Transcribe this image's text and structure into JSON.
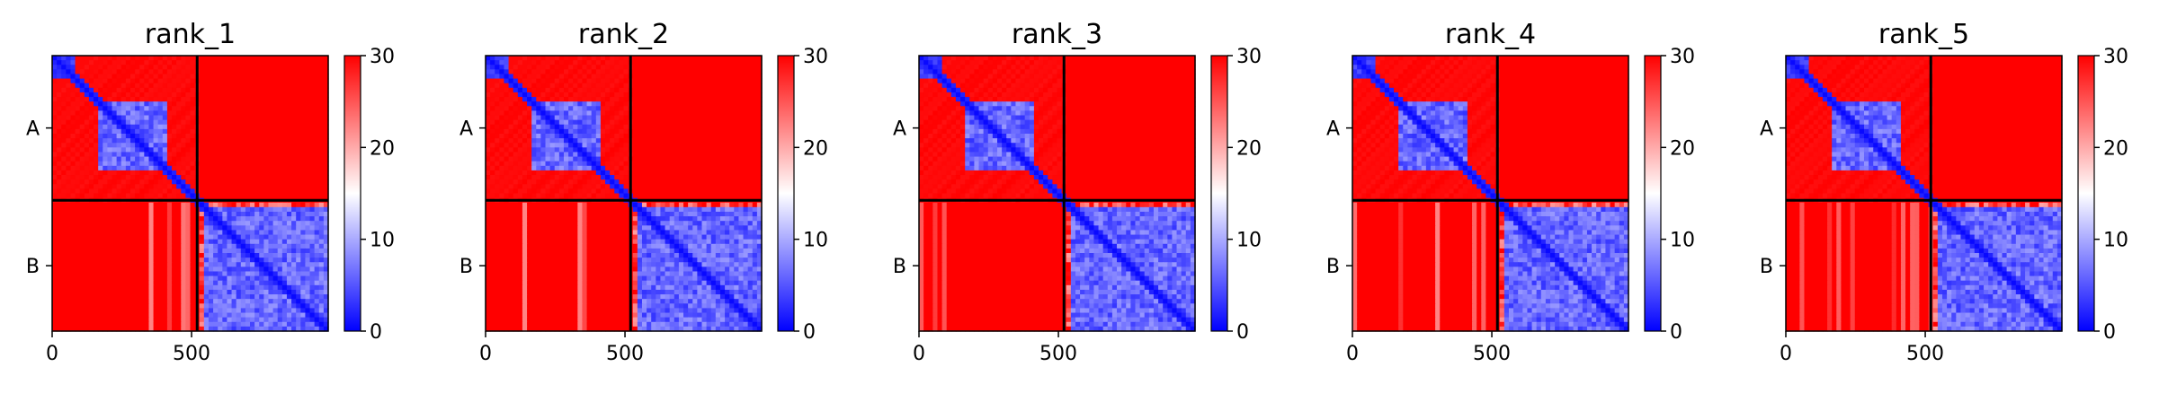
{
  "chart_data": [
    {
      "type": "heatmap",
      "title": "rank_1",
      "xlabel": "",
      "ylabel": "",
      "x_ticks": [
        0,
        500
      ],
      "xlim": [
        0,
        990
      ],
      "y_tick_labels": [
        "A",
        "B"
      ],
      "chain_boundary": 520,
      "colorbar": {
        "colormap": "bwr",
        "min": 0,
        "max": 30,
        "ticks": [
          0,
          10,
          20,
          30
        ]
      },
      "variant": 1,
      "blocks": [
        {
          "chains": "A-A",
          "region": [
            0,
            80
          ],
          "value": 2
        },
        {
          "chains": "A-A",
          "region": [
            160,
            410
          ],
          "value": 5
        },
        {
          "chains": "B-B",
          "region": [
            540,
            990
          ],
          "value": 5
        },
        {
          "chains": "A-B",
          "value": 30
        },
        {
          "chains": "B-A",
          "value": 30
        }
      ]
    },
    {
      "type": "heatmap",
      "title": "rank_2",
      "xlabel": "",
      "ylabel": "",
      "x_ticks": [
        0,
        500
      ],
      "xlim": [
        0,
        990
      ],
      "y_tick_labels": [
        "A",
        "B"
      ],
      "chain_boundary": 520,
      "colorbar": {
        "colormap": "bwr",
        "min": 0,
        "max": 30,
        "ticks": [
          0,
          10,
          20,
          30
        ]
      },
      "variant": 2,
      "blocks": [
        {
          "chains": "A-A",
          "region": [
            0,
            80
          ],
          "value": 2
        },
        {
          "chains": "A-A",
          "region": [
            160,
            410
          ],
          "value": 6
        },
        {
          "chains": "B-B",
          "region": [
            540,
            990
          ],
          "value": 5
        },
        {
          "chains": "A-B",
          "value": 30
        },
        {
          "chains": "B-A",
          "value": 30
        }
      ]
    },
    {
      "type": "heatmap",
      "title": "rank_3",
      "xlabel": "",
      "ylabel": "",
      "x_ticks": [
        0,
        500
      ],
      "xlim": [
        0,
        990
      ],
      "y_tick_labels": [
        "A",
        "B"
      ],
      "chain_boundary": 520,
      "colorbar": {
        "colormap": "bwr",
        "min": 0,
        "max": 30,
        "ticks": [
          0,
          10,
          20,
          30
        ]
      },
      "variant": 3,
      "blocks": [
        {
          "chains": "A-A",
          "region": [
            0,
            80
          ],
          "value": 2
        },
        {
          "chains": "A-A",
          "region": [
            160,
            410
          ],
          "value": 6
        },
        {
          "chains": "B-B",
          "region": [
            540,
            990
          ],
          "value": 5
        },
        {
          "chains": "A-B",
          "value": 30
        },
        {
          "chains": "B-A",
          "value": 30
        }
      ]
    },
    {
      "type": "heatmap",
      "title": "rank_4",
      "xlabel": "",
      "ylabel": "",
      "x_ticks": [
        0,
        500
      ],
      "xlim": [
        0,
        990
      ],
      "y_tick_labels": [
        "A",
        "B"
      ],
      "chain_boundary": 520,
      "colorbar": {
        "colormap": "bwr",
        "min": 0,
        "max": 30,
        "ticks": [
          0,
          10,
          20,
          30
        ]
      },
      "variant": 4,
      "blocks": [
        {
          "chains": "A-A",
          "region": [
            0,
            80
          ],
          "value": 2
        },
        {
          "chains": "A-A",
          "region": [
            160,
            410
          ],
          "value": 5
        },
        {
          "chains": "B-B",
          "region": [
            540,
            990
          ],
          "value": 5
        },
        {
          "chains": "A-B",
          "value": 30
        },
        {
          "chains": "B-A",
          "value": 30
        }
      ]
    },
    {
      "type": "heatmap",
      "title": "rank_5",
      "xlabel": "",
      "ylabel": "",
      "x_ticks": [
        0,
        500
      ],
      "xlim": [
        0,
        990
      ],
      "y_tick_labels": [
        "A",
        "B"
      ],
      "chain_boundary": 520,
      "colorbar": {
        "colormap": "bwr",
        "min": 0,
        "max": 30,
        "ticks": [
          0,
          10,
          20,
          30
        ]
      },
      "variant": 5,
      "blocks": [
        {
          "chains": "A-A",
          "region": [
            0,
            80
          ],
          "value": 2
        },
        {
          "chains": "A-A",
          "region": [
            160,
            410
          ],
          "value": 5
        },
        {
          "chains": "B-B",
          "region": [
            540,
            990
          ],
          "value": 5
        },
        {
          "chains": "A-B",
          "value": 30
        },
        {
          "chains": "B-A",
          "value": 30
        }
      ]
    }
  ],
  "colors": {
    "low": "#0000ff",
    "mid": "#ffffff",
    "high": "#ff0000",
    "axis": "#000000"
  }
}
